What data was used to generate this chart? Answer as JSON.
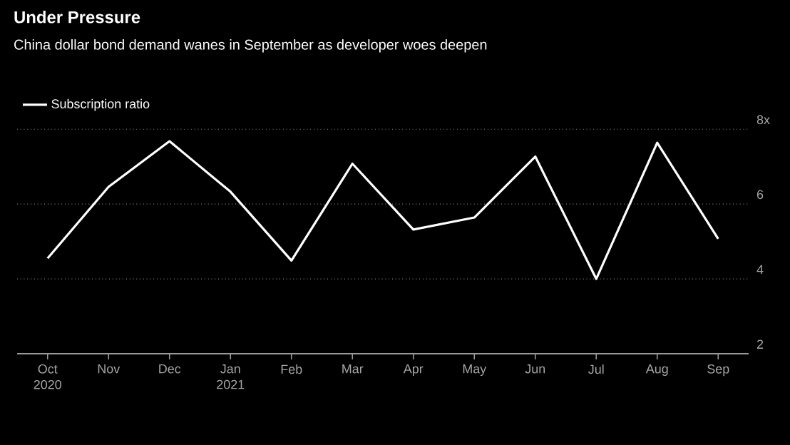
{
  "chart_data": {
    "type": "line",
    "title": "Under Pressure",
    "subtitle": "China dollar bond demand wanes in September as developer woes deepen",
    "categories": [
      "Oct 2020",
      "Nov",
      "Dec",
      "Jan 2021",
      "Feb",
      "Mar",
      "Apr",
      "May",
      "Jun",
      "Jul",
      "Aug",
      "Sep"
    ],
    "series": [
      {
        "name": "Subscription ratio",
        "color": "#ffffff",
        "values": [
          4.55,
          6.46,
          7.68,
          6.33,
          4.49,
          7.08,
          5.32,
          5.64,
          7.27,
          4.0,
          7.64,
          5.07
        ]
      }
    ],
    "ylim": [
      2,
      8.1
    ],
    "yticks": [
      2,
      4,
      6,
      {
        "value": 8,
        "label": "8x"
      }
    ],
    "grid": "y",
    "legend": "top left",
    "marker": "none",
    "line_style": "solid"
  }
}
